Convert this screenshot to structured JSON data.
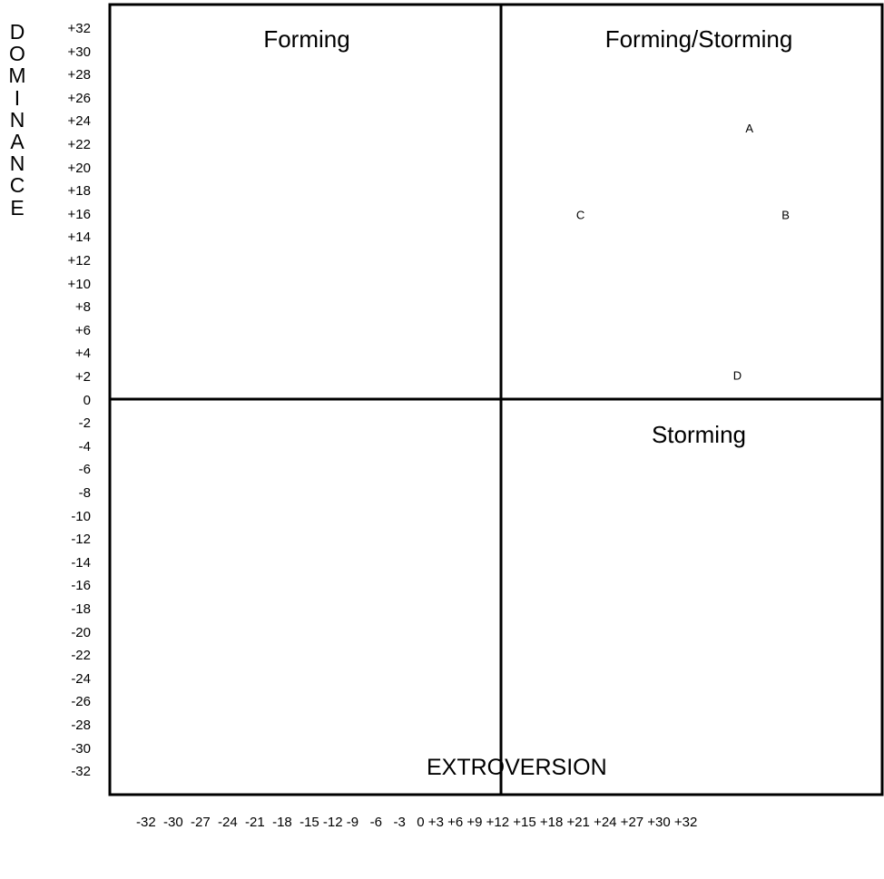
{
  "chart_data": {
    "type": "scatter",
    "ylabel": "DOMINANCE",
    "xlabel": "EXTROVERSION",
    "xlim": [
      -32,
      32
    ],
    "ylim": [
      -32,
      32
    ],
    "y_ticks": [
      "+32",
      "+30",
      "+28",
      "+26",
      "+24",
      "+22",
      "+20",
      "+18",
      "+16",
      "+14",
      "+12",
      "+10",
      "+8",
      "+6",
      "+4",
      "+2",
      "0",
      "-2",
      "-4",
      "-6",
      "-8",
      "-10",
      "-12",
      "-14",
      "-16",
      "-18",
      "-20",
      "-22",
      "-24",
      "-26",
      "-28",
      "-30",
      "-32"
    ],
    "x_ticks_text": "-32  -30  -27  -24  -21  -18  -15 -12 -9   -6   -3   0 +3 +6 +9 +12 +15 +18 +21 +24 +27 +30 +32",
    "quadrants": {
      "top_left": "Forming",
      "top_right": "Forming/Storming",
      "bottom_right": "Storming"
    },
    "points": [
      {
        "label": "A",
        "x": 21,
        "y": 22
      },
      {
        "label": "B",
        "x": 24,
        "y": 15
      },
      {
        "label": "C",
        "x": 7,
        "y": 15
      },
      {
        "label": "D",
        "x": 20,
        "y": 2
      }
    ],
    "grid": false
  }
}
